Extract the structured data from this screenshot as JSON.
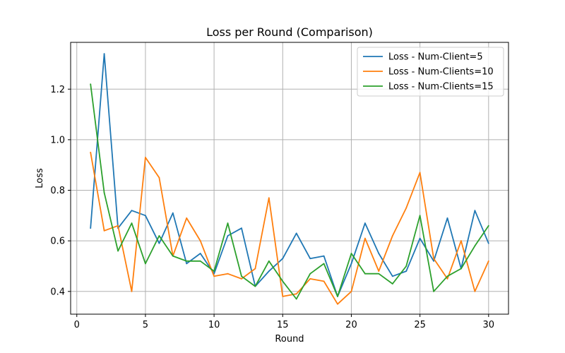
{
  "chart_data": {
    "type": "line",
    "title": "Loss per Round (Comparison)",
    "xlabel": "Round",
    "ylabel": "Loss",
    "xlim": [
      -0.45,
      31.45
    ],
    "ylim": [
      0.31,
      1.385
    ],
    "xticks": [
      0,
      5,
      10,
      15,
      20,
      25,
      30
    ],
    "yticks": [
      0.4,
      0.6,
      0.8,
      1.0,
      1.2
    ],
    "ytick_labels": [
      "0.4",
      "0.6",
      "0.8",
      "1.0",
      "1.2"
    ],
    "grid": true,
    "legend_position": "top-right",
    "x": [
      1,
      2,
      3,
      4,
      5,
      6,
      7,
      8,
      9,
      10,
      11,
      12,
      13,
      14,
      15,
      16,
      17,
      18,
      19,
      20,
      21,
      22,
      23,
      24,
      25,
      26,
      27,
      28,
      29,
      30
    ],
    "series": [
      {
        "name": "Loss - Num-Client=5",
        "color": "#1f77b4",
        "values": [
          0.65,
          1.34,
          0.65,
          0.72,
          0.7,
          0.59,
          0.71,
          0.51,
          0.55,
          0.47,
          0.62,
          0.65,
          0.42,
          0.48,
          0.53,
          0.63,
          0.53,
          0.54,
          0.38,
          0.51,
          0.67,
          0.55,
          0.46,
          0.48,
          0.61,
          0.52,
          0.69,
          0.49,
          0.72,
          0.59
        ]
      },
      {
        "name": "Loss - Num-Clients=10",
        "color": "#ff7f0e",
        "values": [
          0.95,
          0.64,
          0.66,
          0.4,
          0.93,
          0.85,
          0.54,
          0.69,
          0.6,
          0.46,
          0.47,
          0.45,
          0.49,
          0.77,
          0.38,
          0.39,
          0.45,
          0.44,
          0.35,
          0.4,
          0.61,
          0.48,
          0.62,
          0.73,
          0.87,
          0.53,
          0.45,
          0.6,
          0.4,
          0.52
        ]
      },
      {
        "name": "Loss - Num-Clients=15",
        "color": "#2ca02c",
        "values": [
          1.22,
          0.79,
          0.56,
          0.67,
          0.51,
          0.62,
          0.54,
          0.52,
          0.52,
          0.48,
          0.67,
          0.46,
          0.42,
          0.52,
          0.44,
          0.37,
          0.47,
          0.51,
          0.38,
          0.55,
          0.47,
          0.47,
          0.43,
          0.5,
          0.7,
          0.4,
          0.46,
          0.49,
          0.58,
          0.66
        ]
      }
    ]
  }
}
